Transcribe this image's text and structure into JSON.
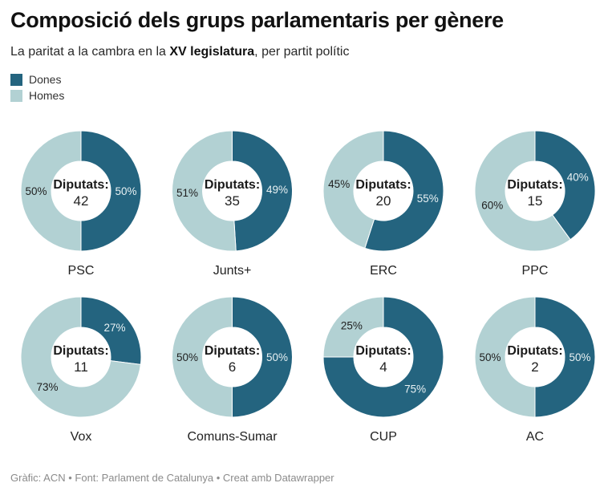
{
  "header": {
    "title": "Composició dels grups parlamentaris per gènere",
    "subtitle_pre": "La paritat a la cambra en la ",
    "subtitle_bold": "XV legislatura",
    "subtitle_post": ", per partit polític"
  },
  "legend": [
    {
      "label": "Dones",
      "color": "#24647f"
    },
    {
      "label": "Homes",
      "color": "#b2d1d3"
    }
  ],
  "footer": "Gràfic: ACN • Font: Parlament de Catalunya • Creat amb Datawrapper",
  "chart_data": {
    "type": "pie",
    "variant": "donut-small-multiples",
    "title": "Composició dels grups parlamentaris per gènere",
    "subtitle": "La paritat a la cambra en la XV legislatura, per partit polític",
    "center_label": "Diputats:",
    "series_names": [
      "Dones",
      "Homes"
    ],
    "colors": {
      "Dones": "#24647f",
      "Homes": "#b2d1d3"
    },
    "legend_position": "top-left",
    "panels": [
      {
        "party": "PSC",
        "diputats": 42,
        "dones_pct": 50,
        "homes_pct": 50
      },
      {
        "party": "Junts+",
        "diputats": 35,
        "dones_pct": 49,
        "homes_pct": 51
      },
      {
        "party": "ERC",
        "diputats": 20,
        "dones_pct": 55,
        "homes_pct": 45
      },
      {
        "party": "PPC",
        "diputats": 15,
        "dones_pct": 40,
        "homes_pct": 60
      },
      {
        "party": "Vox",
        "diputats": 11,
        "dones_pct": 27,
        "homes_pct": 73
      },
      {
        "party": "Comuns-Sumar",
        "diputats": 6,
        "dones_pct": 50,
        "homes_pct": 50
      },
      {
        "party": "CUP",
        "diputats": 4,
        "dones_pct": 75,
        "homes_pct": 25
      },
      {
        "party": "AC",
        "diputats": 2,
        "dones_pct": 50,
        "homes_pct": 50
      }
    ]
  }
}
